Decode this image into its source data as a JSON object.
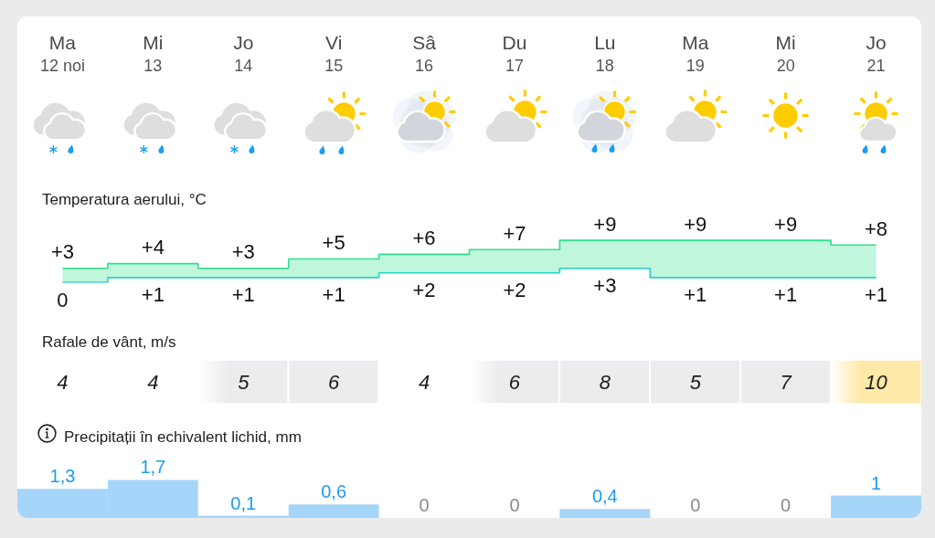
{
  "chart_data": [
    {
      "type": "step",
      "title": "Temperatura aerului, °C",
      "categories": [
        "Ma\n12 noi",
        "Mi\n13",
        "Jo\n14",
        "Vi\n15",
        "Sâ\n16",
        "Du\n17",
        "Lu\n18",
        "Ma\n19",
        "Mi\n20",
        "Jo\n21"
      ],
      "series": [
        {
          "color": "#2fe08a",
          "values": [
            3,
            4,
            3,
            5,
            6,
            7,
            9,
            9,
            9,
            8
          ],
          "value_labels": [
            "+3",
            "+4",
            "+3",
            "+5",
            "+6",
            "+7",
            "+9",
            "+9",
            "+9",
            "+8"
          ],
          "lower": [
            0,
            1,
            1,
            1,
            2,
            2,
            3,
            1,
            1,
            1
          ],
          "upper": [
            3,
            4,
            3,
            5,
            6,
            7,
            9,
            9,
            9,
            8
          ]
        },
        {
          "color": "#22d3c5",
          "values": [
            0,
            1,
            1,
            1,
            2,
            2,
            3,
            1,
            1,
            1
          ],
          "value_labels": [
            "0",
            "+1",
            "+1",
            "+1",
            "+2",
            "+2",
            "+3",
            "+1",
            "+1",
            "+1"
          ]
        }
      ],
      "tick_labels": "x"
    },
    {
      "type": "heatmap",
      "title": "Rafale de vânt, m/s",
      "categories": [
        null,
        null,
        null,
        null,
        null,
        null,
        null,
        null,
        null,
        null
      ],
      "y_categories": [
        null
      ],
      "cells": [
        [
          4,
          4,
          5,
          6,
          4,
          6,
          8,
          5,
          7,
          10
        ]
      ],
      "colors": [
        "#ffffff",
        "#ffffff",
        "#ebecee",
        "#ebecee",
        "#ffffff",
        "#ebecee",
        "#ebecee",
        "#ebecee",
        "#ebecee",
        "#fee9a8"
      ],
      "data_labels": true,
      "tick_labels": false
    },
    {
      "type": "bar",
      "title": "Precipitații în echivalent lichid, mm",
      "categories": [
        null,
        null,
        null,
        null,
        null,
        null,
        null,
        null,
        null,
        null
      ],
      "values": [
        1.3,
        1.7,
        0.1,
        0.6,
        0,
        0,
        0.4,
        0,
        0,
        1
      ],
      "value_labels": [
        "1,3",
        "1,7",
        "0,1",
        "0,6",
        "0",
        "0",
        "0,4",
        "0",
        "0",
        "1"
      ],
      "color": "#a6d5fa",
      "tick_labels": false
    }
  ]
}
